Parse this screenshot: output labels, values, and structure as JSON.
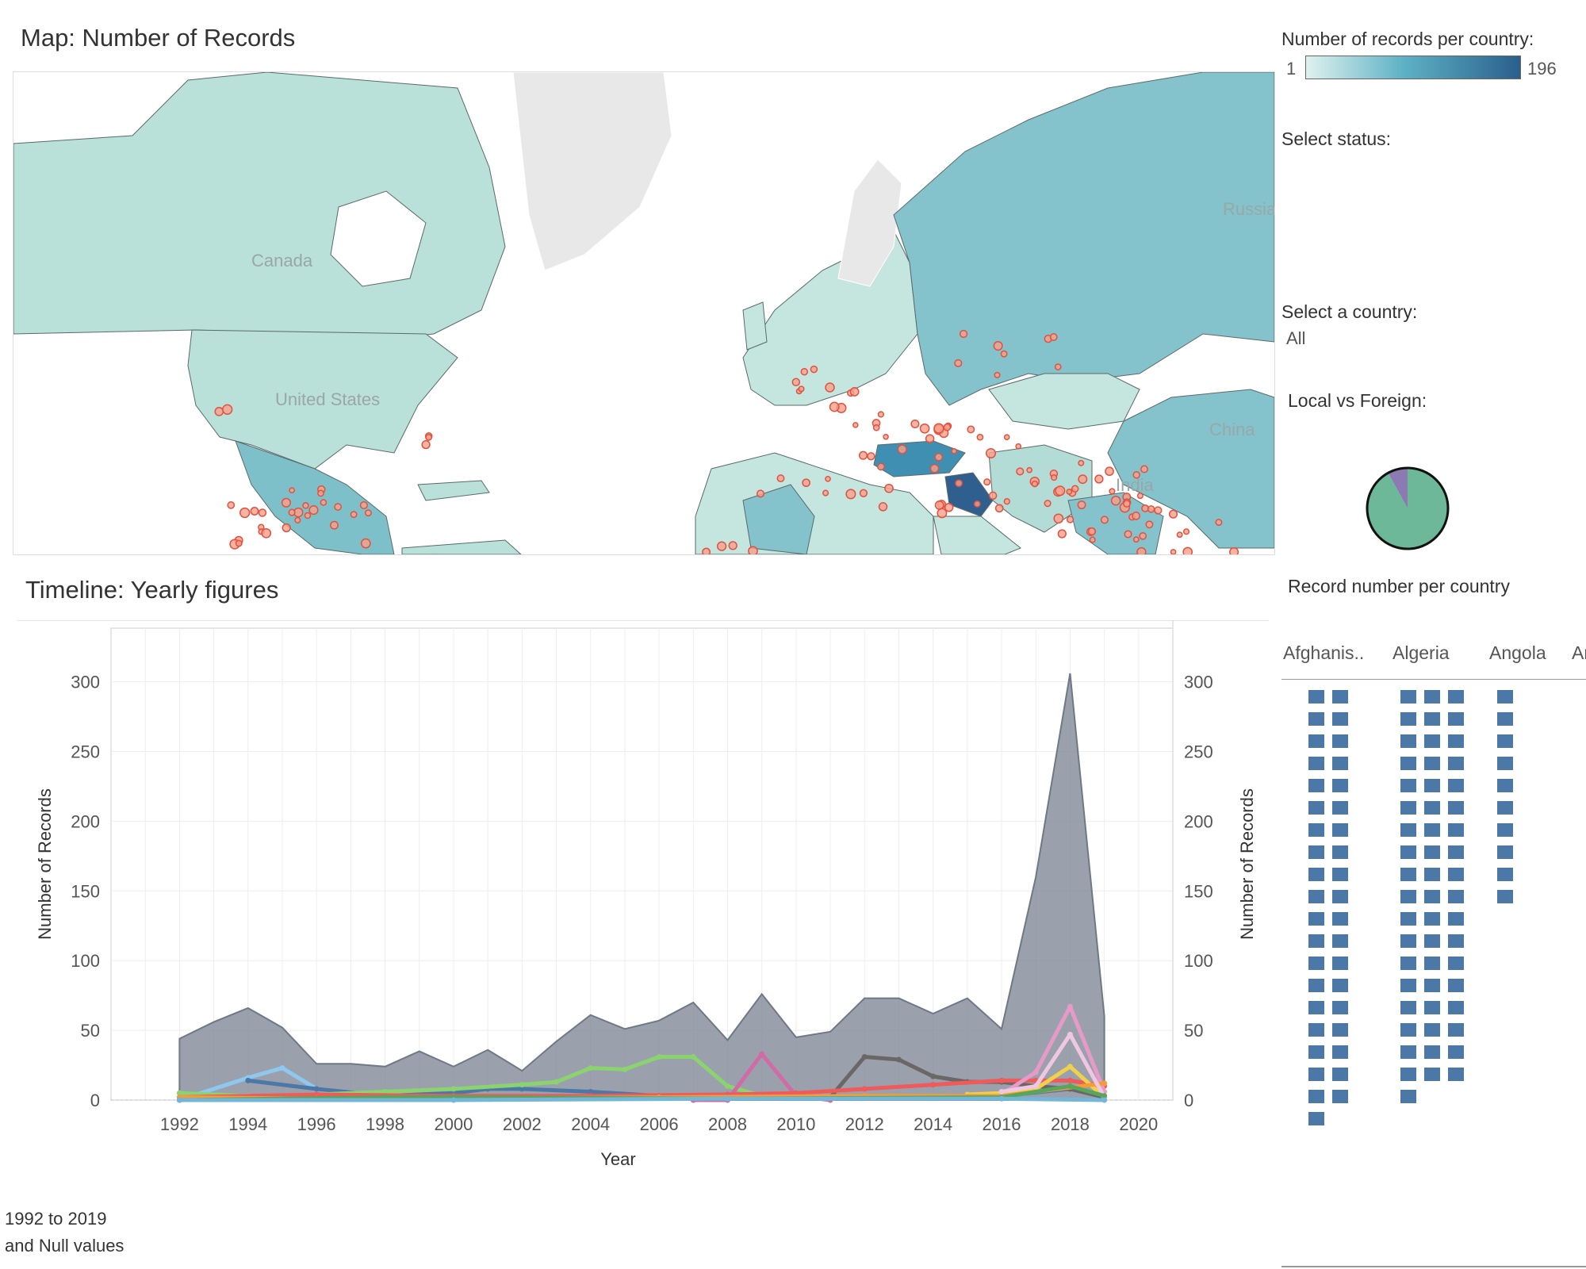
{
  "map": {
    "title": "Map: Number of Records",
    "country_labels": {
      "canada": "Canada",
      "united_states": "United States",
      "russia": "Russia",
      "china": "China",
      "india": "India"
    }
  },
  "legend": {
    "title": "Number of records per country:",
    "min": "1",
    "max": "196",
    "colors": {
      "low": "#dff1ee",
      "mid": "#5fb2c6",
      "high": "#2a5f8c"
    }
  },
  "filters": {
    "status_label": "Select status:",
    "country_label": "Select a country:",
    "country_value": "All",
    "local_foreign_label": "Local vs Foreign:"
  },
  "pie": {
    "slices": [
      {
        "share": 0.92,
        "color": "#6db899"
      },
      {
        "share": 0.08,
        "color": "#8c7bb3"
      }
    ]
  },
  "timeline": {
    "title": "Timeline: Yearly figures",
    "note_line1": "1992 to 2019",
    "note_line2": "and Null values"
  },
  "record_panel": {
    "title": "Record number per country",
    "columns": [
      {
        "name": "Afghanis..",
        "squares": 39
      },
      {
        "name": "Algeria",
        "squares": 55
      },
      {
        "name": "Angola",
        "squares": 10
      },
      {
        "name": "Ar",
        "squares": 0
      }
    ]
  },
  "chart_data": {
    "type": "area",
    "xlabel": "Year",
    "ylabel": "Number of Records",
    "xlim": [
      1990,
      2021
    ],
    "ylim": [
      0,
      310
    ],
    "x_ticks": [
      1992,
      1994,
      1996,
      1998,
      2000,
      2002,
      2004,
      2006,
      2008,
      2010,
      2012,
      2014,
      2016,
      2018,
      2020
    ],
    "y_ticks": [
      0,
      50,
      100,
      150,
      200,
      250,
      300
    ],
    "grid": true,
    "total": {
      "color": "#7d8795",
      "x": [
        1992,
        1993,
        1994,
        1995,
        1996,
        1997,
        1998,
        1999,
        2000,
        2001,
        2002,
        2003,
        2004,
        2005,
        2006,
        2007,
        2008,
        2009,
        2010,
        2011,
        2012,
        2013,
        2014,
        2015,
        2016,
        2017,
        2018,
        2019
      ],
      "values": [
        44,
        56,
        66,
        52,
        26,
        26,
        24,
        35,
        24,
        36,
        21,
        42,
        61,
        51,
        57,
        70,
        43,
        76,
        45,
        49,
        73,
        73,
        62,
        73,
        51,
        160,
        306,
        60
      ]
    },
    "series": [
      {
        "color": "#8fc8ef",
        "x": [
          1992,
          1994,
          1995,
          1996,
          1997,
          1998,
          1999,
          2000
        ],
        "values": [
          0,
          16,
          23,
          8,
          5,
          4,
          4,
          3
        ]
      },
      {
        "color": "#4c78a8",
        "x": [
          1994,
          1996,
          1998,
          2000,
          2001,
          2002,
          2004,
          2006,
          2008,
          2010,
          2012,
          2014,
          2016,
          2018,
          2019
        ],
        "values": [
          14,
          8,
          3,
          5,
          8,
          8,
          6,
          3,
          2,
          2,
          2,
          2,
          3,
          8,
          2
        ]
      },
      {
        "color": "#8bd36f",
        "x": [
          1992,
          1994,
          1996,
          1998,
          2000,
          2002,
          2003,
          2004,
          2005,
          2006,
          2007,
          2008,
          2009,
          2010
        ],
        "values": [
          5,
          3,
          4,
          6,
          8,
          11,
          13,
          23,
          22,
          31,
          31,
          10,
          3,
          2
        ]
      },
      {
        "color": "#d06ba6",
        "x": [
          2007,
          2008,
          2009,
          2010,
          2011
        ],
        "values": [
          0,
          0,
          33,
          3,
          0
        ]
      },
      {
        "color": "#6c6767",
        "x": [
          2011,
          2012,
          2013,
          2014,
          2015,
          2016,
          2017,
          2018,
          2019
        ],
        "values": [
          2,
          31,
          29,
          17,
          13,
          13,
          10,
          8,
          2
        ]
      },
      {
        "color": "#ef5a5a",
        "x": [
          1992,
          1996,
          2000,
          2004,
          2008,
          2010,
          2012,
          2014,
          2016,
          2017,
          2018,
          2019
        ],
        "values": [
          2,
          4,
          3,
          3,
          4,
          5,
          8,
          11,
          14,
          14,
          14,
          10
        ]
      },
      {
        "color": "#e79ac8",
        "x": [
          2016,
          2017,
          2018,
          2019
        ],
        "values": [
          4,
          20,
          67,
          6
        ]
      },
      {
        "color": "#f0d24a",
        "x": [
          2015,
          2016,
          2017,
          2018,
          2019
        ],
        "values": [
          4,
          5,
          8,
          24,
          2
        ]
      },
      {
        "color": "#f49c3a",
        "x": [
          1992,
          1996,
          2000,
          2006,
          2012,
          2016,
          2019
        ],
        "values": [
          2,
          1,
          1,
          2,
          3,
          3,
          12
        ]
      },
      {
        "color": "#f0c7e3",
        "x": [
          2016,
          2017,
          2018,
          2019
        ],
        "values": [
          6,
          10,
          47,
          2
        ]
      },
      {
        "color": "#58a65c",
        "x": [
          1992,
          1998,
          2000,
          2008,
          2016,
          2018,
          2019
        ],
        "values": [
          0,
          2,
          2,
          1,
          2,
          10,
          3
        ]
      },
      {
        "color": "#73b6d8",
        "x": [
          1992,
          2000,
          2008,
          2016,
          2019
        ],
        "values": [
          0,
          0,
          1,
          1,
          0
        ]
      }
    ]
  }
}
